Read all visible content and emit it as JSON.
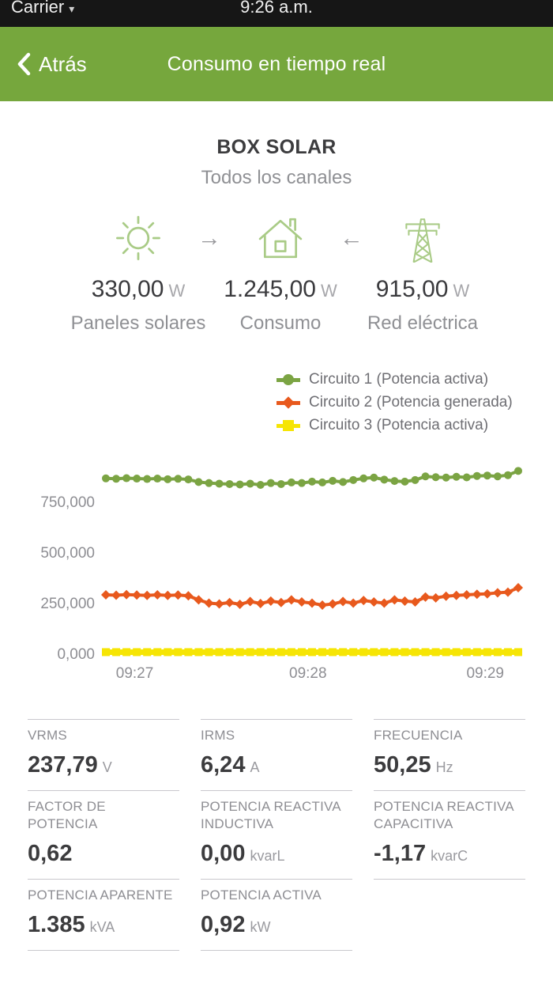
{
  "status_bar": {
    "carrier": "Carrier",
    "dropdown": "▾",
    "time": "9:26 a.m."
  },
  "navbar": {
    "back_label": "Atrás",
    "title": "Consumo en tiempo real"
  },
  "device": {
    "name": "BOX SOLAR",
    "channels": "Todos los canales"
  },
  "power_flow": {
    "arrow_right": "→",
    "arrow_left": "←",
    "solar": {
      "value": "330,00",
      "unit": "W",
      "label": "Paneles solares"
    },
    "consumption": {
      "value": "1.245,00",
      "unit": "W",
      "label": "Consumo"
    },
    "grid": {
      "value": "915,00",
      "unit": "W",
      "label": "Red eléctrica"
    }
  },
  "chart_data": {
    "type": "line",
    "title": "",
    "xlabel": "",
    "ylabel": "",
    "ylim": [
      0,
      1000
    ],
    "grid": false,
    "legend_position": "top-right",
    "x_ticks": [
      "09:27",
      "09:28",
      "09:29"
    ],
    "y_ticks": [
      "750,000",
      "500,000",
      "250,000",
      "0,000"
    ],
    "y_tick_values": [
      750,
      500,
      250,
      0
    ],
    "series": [
      {
        "name": "Circuito 1 (Potencia activa)",
        "color": "#7ba443",
        "marker": "circle",
        "values": [
          868,
          866,
          869,
          867,
          865,
          867,
          864,
          866,
          863,
          850,
          845,
          842,
          840,
          838,
          842,
          836,
          845,
          840,
          848,
          845,
          852,
          848,
          856,
          850,
          860,
          868,
          872,
          862,
          855,
          852,
          860,
          878,
          874,
          872,
          876,
          873,
          880,
          882,
          878,
          884,
          905
        ]
      },
      {
        "name": "Circuito 2 (Potencia generada)",
        "color": "#e8591d",
        "marker": "diamond",
        "values": [
          293,
          291,
          294,
          292,
          290,
          293,
          290,
          292,
          288,
          268,
          252,
          248,
          255,
          246,
          260,
          250,
          262,
          255,
          268,
          258,
          252,
          242,
          248,
          260,
          252,
          265,
          258,
          252,
          268,
          262,
          258,
          282,
          278,
          286,
          290,
          293,
          296,
          298,
          303,
          306,
          328
        ]
      },
      {
        "name": "Circuito 3 (Potencia activa)",
        "color": "#f6e504",
        "marker": "square",
        "values": [
          10,
          10,
          10,
          10,
          10,
          10,
          10,
          10,
          10,
          10,
          10,
          10,
          10,
          10,
          10,
          10,
          10,
          10,
          10,
          10,
          10,
          10,
          10,
          10,
          10,
          10,
          10,
          10,
          10,
          10,
          10,
          10,
          10,
          10,
          10,
          10,
          10,
          10,
          10,
          10,
          10
        ]
      }
    ]
  },
  "metrics": {
    "rows": [
      [
        {
          "label": "VRMS",
          "value": "237,79",
          "unit": "V"
        },
        {
          "label": "IRMS",
          "value": "6,24",
          "unit": "A"
        },
        {
          "label": "FRECUENCIA",
          "value": "50,25",
          "unit": "Hz"
        }
      ],
      [
        {
          "label": "FACTOR DE POTENCIA",
          "value": "0,62",
          "unit": ""
        },
        {
          "label": "POTENCIA REACTIVA INDUCTIVA",
          "value": "0,00",
          "unit": "kvarL"
        },
        {
          "label": "POTENCIA REACTIVA CAPACITIVA",
          "value": "-1,17",
          "unit": "kvarC"
        }
      ],
      [
        {
          "label": "POTENCIA APARENTE",
          "value": "1.385",
          "unit": "kVA"
        },
        {
          "label": "POTENCIA ACTIVA",
          "value": "0,92",
          "unit": "kW"
        },
        null
      ]
    ]
  },
  "colors": {
    "accent_green": "#76a73d",
    "icon_green": "#a9cb86",
    "series_green": "#7ba443",
    "series_orange": "#e8591d",
    "series_yellow": "#f6e504",
    "separator": "#c9c8cd"
  }
}
